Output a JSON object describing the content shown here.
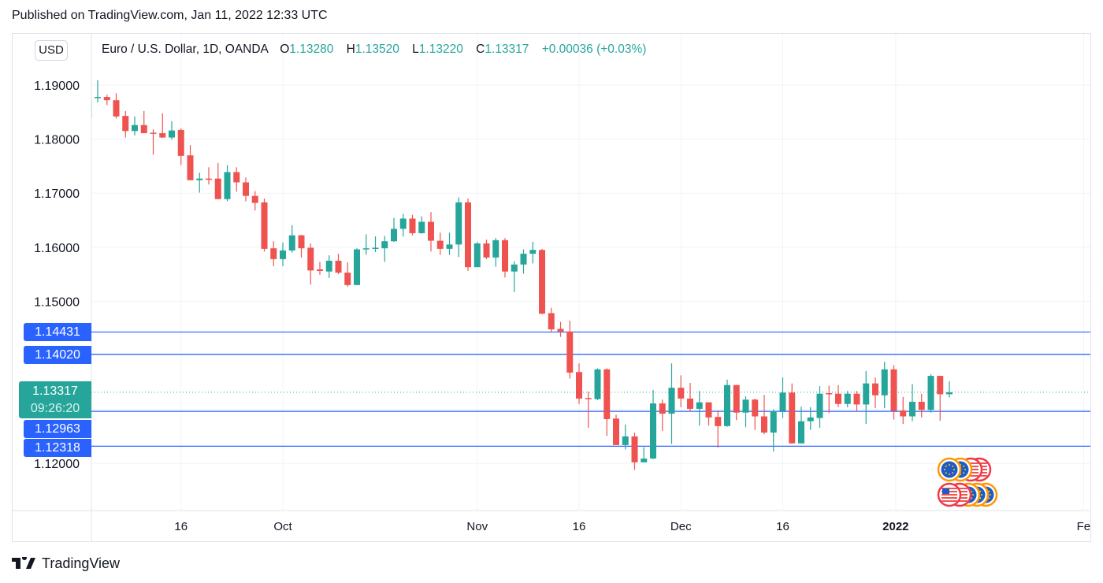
{
  "published": "Published on TradingView.com, Jan 11, 2022 12:33 UTC",
  "currency_button": "USD",
  "legend": {
    "symbol": "Euro / U.S. Dollar, 1D, OANDA",
    "o_label": "O",
    "o_value": "1.13280",
    "h_label": "H",
    "h_value": "1.13520",
    "l_label": "L",
    "l_value": "1.13220",
    "c_label": "C",
    "c_value": "1.13317",
    "change": "+0.00036 (+0.03%)"
  },
  "price_lines": [
    {
      "label": "1.14431",
      "value": 1.14431
    },
    {
      "label": "1.14020",
      "value": 1.1402
    },
    {
      "label": "1.12963",
      "value": 1.12963
    },
    {
      "label": "1.12318",
      "value": 1.12318
    }
  ],
  "current_price": {
    "label": "1.13317",
    "value": 1.13317,
    "countdown": "09:26:20"
  },
  "footer_brand": "TradingView",
  "colors": {
    "up": "#26a69a",
    "down": "#ef5350",
    "line": "#2962ff",
    "grid": "#f0f3fa"
  },
  "chart_data": {
    "type": "candlestick",
    "title": "Euro / U.S. Dollar, 1D, OANDA",
    "ylim": [
      1.112,
      1.1985
    ],
    "y_ticks": [
      {
        "value": 1.19,
        "label": "1.19000"
      },
      {
        "value": 1.18,
        "label": "1.18000"
      },
      {
        "value": 1.17,
        "label": "1.17000"
      },
      {
        "value": 1.16,
        "label": "1.16000"
      },
      {
        "value": 1.15,
        "label": "1.15000"
      },
      {
        "value": 1.12,
        "label": "1.12000"
      }
    ],
    "x_ticks": [
      {
        "index": 10,
        "label": "16",
        "bold": false
      },
      {
        "index": 21,
        "label": "Oct",
        "bold": false
      },
      {
        "index": 42,
        "label": "Nov",
        "bold": false
      },
      {
        "index": 53,
        "label": "16",
        "bold": false
      },
      {
        "index": 64,
        "label": "Dec",
        "bold": false
      },
      {
        "index": 75,
        "label": "16",
        "bold": false
      },
      {
        "index": 87.2,
        "label": "2022",
        "bold": true
      },
      {
        "index": 107.5,
        "label": "Fe",
        "bold": false
      }
    ],
    "grid": true,
    "ohlc": [
      [
        1.184,
        1.1876,
        1.1838,
        1.1872
      ],
      [
        1.1876,
        1.1909,
        1.1868,
        1.1878
      ],
      [
        1.1878,
        1.1882,
        1.1863,
        1.1872
      ],
      [
        1.1872,
        1.1885,
        1.1838,
        1.1842
      ],
      [
        1.1843,
        1.1852,
        1.1803,
        1.1815
      ],
      [
        1.1815,
        1.1842,
        1.1807,
        1.1826
      ],
      [
        1.1826,
        1.1852,
        1.1811,
        1.1811
      ],
      [
        1.1812,
        1.1818,
        1.1771,
        1.181
      ],
      [
        1.1811,
        1.1848,
        1.1802,
        1.1803
      ],
      [
        1.1803,
        1.1833,
        1.1799,
        1.1816
      ],
      [
        1.1817,
        1.182,
        1.1752,
        1.1769
      ],
      [
        1.177,
        1.1789,
        1.1724,
        1.1724
      ],
      [
        1.1724,
        1.1738,
        1.1701,
        1.1727
      ],
      [
        1.1727,
        1.1748,
        1.1716,
        1.1725
      ],
      [
        1.1727,
        1.1756,
        1.1689,
        1.1689
      ],
      [
        1.1689,
        1.1752,
        1.1685,
        1.1739
      ],
      [
        1.1739,
        1.1748,
        1.1703,
        1.172
      ],
      [
        1.172,
        1.1729,
        1.1685,
        1.1695
      ],
      [
        1.1695,
        1.1704,
        1.1668,
        1.1682
      ],
      [
        1.1683,
        1.169,
        1.1592,
        1.1597
      ],
      [
        1.1598,
        1.1611,
        1.1565,
        1.1578
      ],
      [
        1.1578,
        1.1609,
        1.1565,
        1.1594
      ],
      [
        1.1594,
        1.1641,
        1.159,
        1.1622
      ],
      [
        1.1622,
        1.1623,
        1.1581,
        1.1598
      ],
      [
        1.1599,
        1.1607,
        1.1531,
        1.1557
      ],
      [
        1.1559,
        1.1573,
        1.1549,
        1.1556
      ],
      [
        1.1555,
        1.1585,
        1.1543,
        1.1575
      ],
      [
        1.1575,
        1.1588,
        1.155,
        1.1553
      ],
      [
        1.1553,
        1.1572,
        1.1527,
        1.153
      ],
      [
        1.153,
        1.1598,
        1.153,
        1.1596
      ],
      [
        1.1596,
        1.1624,
        1.1586,
        1.1598
      ],
      [
        1.1597,
        1.162,
        1.1591,
        1.1599
      ],
      [
        1.1598,
        1.1621,
        1.1573,
        1.1611
      ],
      [
        1.1611,
        1.1654,
        1.161,
        1.1634
      ],
      [
        1.1634,
        1.1662,
        1.162,
        1.1653
      ],
      [
        1.1653,
        1.166,
        1.1622,
        1.1626
      ],
      [
        1.1626,
        1.1657,
        1.1625,
        1.1647
      ],
      [
        1.1647,
        1.1665,
        1.1592,
        1.1612
      ],
      [
        1.1612,
        1.1627,
        1.1586,
        1.1597
      ],
      [
        1.1597,
        1.1627,
        1.1586,
        1.1605
      ],
      [
        1.1605,
        1.1692,
        1.1582,
        1.1683
      ],
      [
        1.1683,
        1.169,
        1.1556,
        1.1563
      ],
      [
        1.1563,
        1.161,
        1.157,
        1.1607
      ],
      [
        1.1607,
        1.1614,
        1.1578,
        1.1581
      ],
      [
        1.1581,
        1.1617,
        1.1564,
        1.1613
      ],
      [
        1.1613,
        1.1617,
        1.1544,
        1.1555
      ],
      [
        1.1555,
        1.1574,
        1.1517,
        1.1568
      ],
      [
        1.1568,
        1.1596,
        1.1551,
        1.1588
      ],
      [
        1.1588,
        1.161,
        1.157,
        1.1595
      ],
      [
        1.1595,
        1.1597,
        1.1476,
        1.1477
      ],
      [
        1.1478,
        1.1488,
        1.1442,
        1.1448
      ],
      [
        1.1449,
        1.1462,
        1.1434,
        1.1444
      ],
      [
        1.1444,
        1.1464,
        1.1357,
        1.1368
      ],
      [
        1.1369,
        1.1385,
        1.131,
        1.132
      ],
      [
        1.1321,
        1.1333,
        1.1266,
        1.1319
      ],
      [
        1.1319,
        1.1376,
        1.1317,
        1.1374
      ],
      [
        1.1374,
        1.1376,
        1.1251,
        1.1282
      ],
      [
        1.1283,
        1.129,
        1.1234,
        1.1234
      ],
      [
        1.1234,
        1.1272,
        1.1226,
        1.125
      ],
      [
        1.125,
        1.1257,
        1.1188,
        1.1202
      ],
      [
        1.1202,
        1.123,
        1.1202,
        1.1209
      ],
      [
        1.1209,
        1.1336,
        1.1208,
        1.1311
      ],
      [
        1.1311,
        1.1318,
        1.126,
        1.1292
      ],
      [
        1.1292,
        1.1385,
        1.1236,
        1.134
      ],
      [
        1.134,
        1.1363,
        1.1304,
        1.132
      ],
      [
        1.132,
        1.1349,
        1.1296,
        1.1301
      ],
      [
        1.1301,
        1.1334,
        1.127,
        1.1313
      ],
      [
        1.1313,
        1.1313,
        1.127,
        1.1285
      ],
      [
        1.1286,
        1.1298,
        1.1229,
        1.1269
      ],
      [
        1.1269,
        1.1355,
        1.1268,
        1.1345
      ],
      [
        1.1345,
        1.1345,
        1.128,
        1.1294
      ],
      [
        1.1294,
        1.1324,
        1.1267,
        1.1318
      ],
      [
        1.1318,
        1.132,
        1.1262,
        1.1287
      ],
      [
        1.1287,
        1.1327,
        1.1254,
        1.1257
      ],
      [
        1.1257,
        1.13,
        1.1222,
        1.1297
      ],
      [
        1.1297,
        1.1359,
        1.1284,
        1.1331
      ],
      [
        1.1331,
        1.1348,
        1.1237,
        1.1237
      ],
      [
        1.1237,
        1.1305,
        1.1237,
        1.1278
      ],
      [
        1.1278,
        1.1304,
        1.1262,
        1.1285
      ],
      [
        1.1284,
        1.1343,
        1.1266,
        1.1329
      ],
      [
        1.133,
        1.1344,
        1.1293,
        1.1328
      ],
      [
        1.1329,
        1.1345,
        1.1304,
        1.131
      ],
      [
        1.131,
        1.1334,
        1.1304,
        1.1329
      ],
      [
        1.1329,
        1.1334,
        1.1296,
        1.1309
      ],
      [
        1.1309,
        1.1371,
        1.1273,
        1.1348
      ],
      [
        1.1348,
        1.1359,
        1.1302,
        1.1326
      ],
      [
        1.1326,
        1.1388,
        1.1302,
        1.1374
      ],
      [
        1.1374,
        1.1382,
        1.1281,
        1.1297
      ],
      [
        1.1298,
        1.1323,
        1.1273,
        1.1287
      ],
      [
        1.1287,
        1.1347,
        1.1278,
        1.1314
      ],
      [
        1.1314,
        1.1329,
        1.1285,
        1.1299
      ],
      [
        1.1299,
        1.1365,
        1.1294,
        1.1362
      ],
      [
        1.1362,
        1.1362,
        1.1279,
        1.1328
      ],
      [
        1.1328,
        1.1352,
        1.1322,
        1.13317
      ]
    ]
  }
}
